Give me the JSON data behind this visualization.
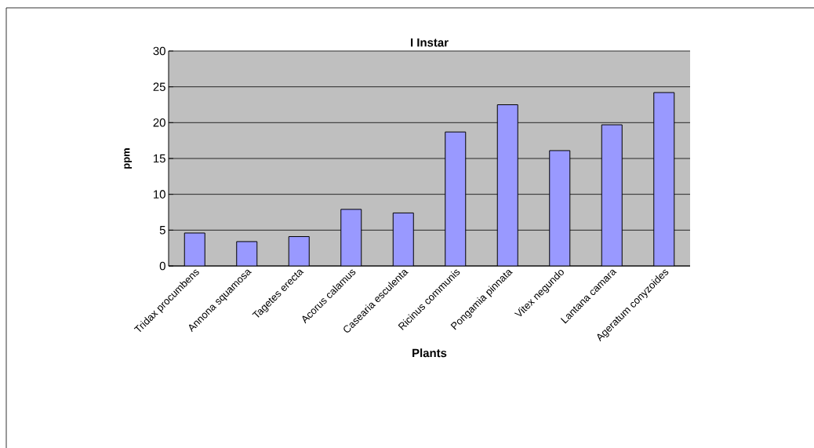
{
  "chart_data": {
    "type": "bar",
    "title": "I Instar",
    "xlabel": "Plants",
    "ylabel": "ppm",
    "categories": [
      "Tridax procumbens",
      "Annona squamosa",
      "Tagetes erecta",
      "Acorus calamus",
      "Casearia esculenta",
      "Ricinus communis",
      "Pongamia pinnata",
      "Vitex negundo",
      "Lantana camara",
      "Ageratum conyzoides"
    ],
    "values": [
      4.6,
      3.4,
      4.1,
      7.9,
      7.4,
      18.7,
      22.5,
      16.1,
      19.7,
      24.2
    ],
    "color": "#9999ff",
    "ylim": [
      0,
      30
    ],
    "yticks": [
      0,
      5,
      10,
      15,
      20,
      25,
      30
    ],
    "grid": "y"
  }
}
